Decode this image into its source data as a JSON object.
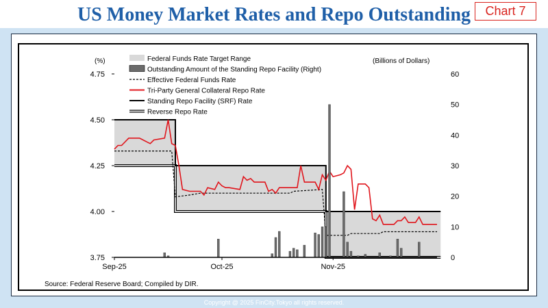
{
  "header": {
    "title": "US Money Market Rates and Repo Outstanding",
    "tag": "Chart 7"
  },
  "footer": {
    "copyright": "Copyright @ 2025 FinCity.Tokyo all rights reserved."
  },
  "chart_data": {
    "type": "line",
    "left_unit": "(%)",
    "right_unit": "(Billions of Dollars)",
    "source": "Source: Federal Reserve Board; Compiled by DIR.",
    "x_ticks": [
      "Sep-25",
      "Oct-25",
      "Nov-25"
    ],
    "x_range": [
      "2025-09-01",
      "2025-11-30"
    ],
    "y_left_range": [
      3.75,
      4.75
    ],
    "y_left_ticks": [
      "3.75",
      "4.00",
      "4.25",
      "4.50",
      "4.75"
    ],
    "y_right_range": [
      0,
      60
    ],
    "y_right_ticks": [
      "0",
      "10",
      "20",
      "30",
      "40",
      "50",
      "60"
    ],
    "legend": [
      {
        "label": "Federal Funds Rate Target Range"
      },
      {
        "label": "Outstanding Amount of the Standing Repo Facility (Right)"
      },
      {
        "label": "Effective Federal Funds Rate"
      },
      {
        "label": "Tri-Party General Collateral Repo Rate"
      },
      {
        "label": "Standing Repo Facility (SRF) Rate"
      },
      {
        "label": "Reverse Repo Rate"
      }
    ],
    "colors": {
      "target_range_fill": "#d9d9d9",
      "srf_bars": "#6b6b6b",
      "effr": "#000000",
      "tgcr": "#e0141b",
      "srf_rate": "#000000",
      "rrp_rate": "#000000"
    },
    "target_range": [
      {
        "start": "2025-09-01",
        "end": "2025-09-17",
        "low": 4.25,
        "high": 4.5
      },
      {
        "start": "2025-09-18",
        "end": "2025-10-29",
        "low": 4.0,
        "high": 4.25
      },
      {
        "start": "2025-10-30",
        "end": "2025-11-30",
        "low": 3.75,
        "high": 4.0
      }
    ],
    "effr": [
      {
        "date": "2025-09-01",
        "value": 4.33
      },
      {
        "date": "2025-09-17",
        "value": 4.33
      },
      {
        "date": "2025-09-18",
        "value": 4.08
      },
      {
        "date": "2025-09-22",
        "value": 4.09
      },
      {
        "date": "2025-09-25",
        "value": 4.1
      },
      {
        "date": "2025-10-20",
        "value": 4.1
      },
      {
        "date": "2025-10-21",
        "value": 4.11
      },
      {
        "date": "2025-10-29",
        "value": 4.12
      },
      {
        "date": "2025-10-30",
        "value": 3.87
      },
      {
        "date": "2025-11-05",
        "value": 3.87
      },
      {
        "date": "2025-11-06",
        "value": 3.88
      },
      {
        "date": "2025-11-14",
        "value": 3.88
      },
      {
        "date": "2025-11-15",
        "value": 3.89
      },
      {
        "date": "2025-11-30",
        "value": 3.89
      }
    ],
    "tgcr": [
      {
        "date": "2025-09-01",
        "value": 4.34
      },
      {
        "date": "2025-09-02",
        "value": 4.36
      },
      {
        "date": "2025-09-03",
        "value": 4.36
      },
      {
        "date": "2025-09-04",
        "value": 4.38
      },
      {
        "date": "2025-09-05",
        "value": 4.4
      },
      {
        "date": "2025-09-08",
        "value": 4.4
      },
      {
        "date": "2025-09-09",
        "value": 4.39
      },
      {
        "date": "2025-09-10",
        "value": 4.38
      },
      {
        "date": "2025-09-11",
        "value": 4.37
      },
      {
        "date": "2025-09-12",
        "value": 4.39
      },
      {
        "date": "2025-09-15",
        "value": 4.4
      },
      {
        "date": "2025-09-16",
        "value": 4.5
      },
      {
        "date": "2025-09-17",
        "value": 4.37
      },
      {
        "date": "2025-09-18",
        "value": 4.36
      },
      {
        "date": "2025-09-19",
        "value": 4.25
      },
      {
        "date": "2025-09-20",
        "value": 4.12
      },
      {
        "date": "2025-09-22",
        "value": 4.11
      },
      {
        "date": "2025-09-25",
        "value": 4.11
      },
      {
        "date": "2025-09-26",
        "value": 4.09
      },
      {
        "date": "2025-09-27",
        "value": 4.13
      },
      {
        "date": "2025-09-29",
        "value": 4.12
      },
      {
        "date": "2025-09-30",
        "value": 4.16
      },
      {
        "date": "2025-10-01",
        "value": 4.14
      },
      {
        "date": "2025-10-02",
        "value": 4.13
      },
      {
        "date": "2025-10-03",
        "value": 4.13
      },
      {
        "date": "2025-10-06",
        "value": 4.12
      },
      {
        "date": "2025-10-07",
        "value": 4.19
      },
      {
        "date": "2025-10-08",
        "value": 4.17
      },
      {
        "date": "2025-10-09",
        "value": 4.18
      },
      {
        "date": "2025-10-10",
        "value": 4.16
      },
      {
        "date": "2025-10-13",
        "value": 4.16
      },
      {
        "date": "2025-10-14",
        "value": 4.11
      },
      {
        "date": "2025-10-15",
        "value": 4.12
      },
      {
        "date": "2025-10-16",
        "value": 4.1
      },
      {
        "date": "2025-10-17",
        "value": 4.13
      },
      {
        "date": "2025-10-20",
        "value": 4.13
      },
      {
        "date": "2025-10-21",
        "value": 4.13
      },
      {
        "date": "2025-10-22",
        "value": 4.13
      },
      {
        "date": "2025-10-23",
        "value": 4.25
      },
      {
        "date": "2025-10-24",
        "value": 4.16
      },
      {
        "date": "2025-10-27",
        "value": 4.16
      },
      {
        "date": "2025-10-28",
        "value": 4.12
      },
      {
        "date": "2025-10-29",
        "value": 4.2
      },
      {
        "date": "2025-10-30",
        "value": 4.17
      },
      {
        "date": "2025-10-31",
        "value": 4.22
      },
      {
        "date": "2025-11-01",
        "value": 4.19
      },
      {
        "date": "2025-11-03",
        "value": 4.2
      },
      {
        "date": "2025-11-04",
        "value": 4.21
      },
      {
        "date": "2025-11-05",
        "value": 4.25
      },
      {
        "date": "2025-11-06",
        "value": 4.23
      },
      {
        "date": "2025-11-07",
        "value": 4.01
      },
      {
        "date": "2025-11-08",
        "value": 4.15
      },
      {
        "date": "2025-11-10",
        "value": 4.15
      },
      {
        "date": "2025-11-11",
        "value": 4.13
      },
      {
        "date": "2025-11-12",
        "value": 3.96
      },
      {
        "date": "2025-11-13",
        "value": 3.95
      },
      {
        "date": "2025-11-14",
        "value": 3.98
      },
      {
        "date": "2025-11-15",
        "value": 3.93
      },
      {
        "date": "2025-11-17",
        "value": 3.93
      },
      {
        "date": "2025-11-18",
        "value": 3.93
      },
      {
        "date": "2025-11-19",
        "value": 3.95
      },
      {
        "date": "2025-11-20",
        "value": 3.95
      },
      {
        "date": "2025-11-21",
        "value": 3.97
      },
      {
        "date": "2025-11-22",
        "value": 3.94
      },
      {
        "date": "2025-11-24",
        "value": 3.94
      },
      {
        "date": "2025-11-25",
        "value": 3.97
      },
      {
        "date": "2025-11-26",
        "value": 3.93
      },
      {
        "date": "2025-11-27",
        "value": 3.93
      },
      {
        "date": "2025-11-30",
        "value": 3.93
      }
    ],
    "srf_rate": [
      {
        "date": "2025-09-01",
        "value": 4.5
      },
      {
        "date": "2025-09-17",
        "value": 4.5
      },
      {
        "date": "2025-09-18",
        "value": 4.25
      },
      {
        "date": "2025-10-29",
        "value": 4.25
      },
      {
        "date": "2025-10-30",
        "value": 4.0
      },
      {
        "date": "2025-11-30",
        "value": 4.0
      }
    ],
    "rrp_rate": [
      {
        "date": "2025-09-01",
        "value": 4.25
      },
      {
        "date": "2025-09-17",
        "value": 4.25
      },
      {
        "date": "2025-09-18",
        "value": 4.0
      },
      {
        "date": "2025-10-29",
        "value": 4.0
      },
      {
        "date": "2025-10-30",
        "value": 3.75
      },
      {
        "date": "2025-11-30",
        "value": 3.75
      }
    ],
    "srf_outstanding": [
      {
        "date": "2025-09-15",
        "value": 1.5
      },
      {
        "date": "2025-09-16",
        "value": 0.5
      },
      {
        "date": "2025-09-30",
        "value": 6.0
      },
      {
        "date": "2025-10-15",
        "value": 1.2
      },
      {
        "date": "2025-10-16",
        "value": 6.5
      },
      {
        "date": "2025-10-17",
        "value": 8.5
      },
      {
        "date": "2025-10-20",
        "value": 2.0
      },
      {
        "date": "2025-10-21",
        "value": 3.0
      },
      {
        "date": "2025-10-22",
        "value": 2.5
      },
      {
        "date": "2025-10-24",
        "value": 4.0
      },
      {
        "date": "2025-10-27",
        "value": 8.0
      },
      {
        "date": "2025-10-28",
        "value": 7.5
      },
      {
        "date": "2025-10-29",
        "value": 10.0
      },
      {
        "date": "2025-10-30",
        "value": 10.0
      },
      {
        "date": "2025-10-31",
        "value": 50.0
      },
      {
        "date": "2025-11-04",
        "value": 21.5
      },
      {
        "date": "2025-11-05",
        "value": 5.0
      },
      {
        "date": "2025-11-06",
        "value": 2.0
      },
      {
        "date": "2025-11-08",
        "value": 0.5
      },
      {
        "date": "2025-11-10",
        "value": 1.0
      },
      {
        "date": "2025-11-14",
        "value": 1.5
      },
      {
        "date": "2025-11-17",
        "value": 0.5
      },
      {
        "date": "2025-11-19",
        "value": 6.0
      },
      {
        "date": "2025-11-20",
        "value": 3.0
      },
      {
        "date": "2025-11-25",
        "value": 5.0
      }
    ]
  }
}
